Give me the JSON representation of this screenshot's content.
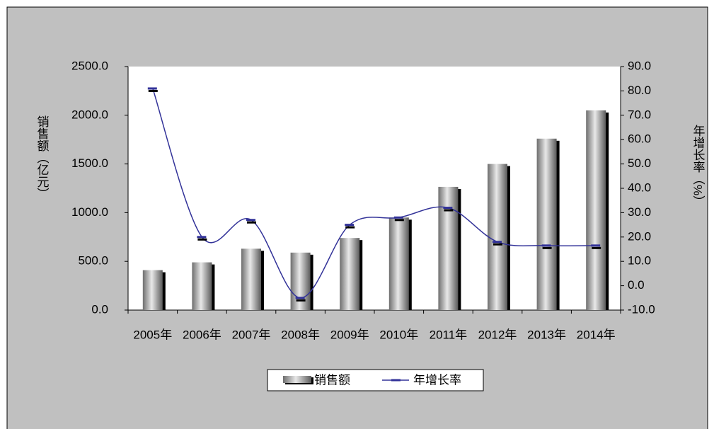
{
  "chart_data": {
    "type": "bar_line",
    "categories": [
      "2005年",
      "2006年",
      "2007年",
      "2008年",
      "2009年",
      "2010年",
      "2011年",
      "2012年",
      "2013年",
      "2014年"
    ],
    "series": [
      {
        "name": "销售额",
        "color": "#808080",
        "values": [
          410,
          490,
          630,
          590,
          740,
          950,
          1265,
          1500,
          1760,
          2050
        ]
      },
      {
        "name": "年增长率",
        "color": "#333399",
        "axis": "y2",
        "values": [
          81,
          20,
          27,
          -5,
          25,
          28,
          32,
          18,
          16.5,
          16.5
        ]
      }
    ],
    "ylabel": "销售额（亿元）",
    "y2label": "年增长率（%）",
    "ylim": [
      0,
      2500
    ],
    "yticks": [
      {
        "value": 0,
        "label": "0.0"
      },
      {
        "value": 500,
        "label": "500.0"
      },
      {
        "value": 1000,
        "label": "1000.0"
      },
      {
        "value": 1500,
        "label": "1500.0"
      },
      {
        "value": 2000,
        "label": "2000.0"
      },
      {
        "value": 2500,
        "label": "2500.0"
      }
    ],
    "y2lim": [
      -10,
      90
    ],
    "y2ticks": [
      {
        "value": -10,
        "label": "-10.0"
      },
      {
        "value": 0,
        "label": "0.0"
      },
      {
        "value": 10,
        "label": "10.0"
      },
      {
        "value": 20,
        "label": "20.0"
      },
      {
        "value": 30,
        "label": "30.0"
      },
      {
        "value": 40,
        "label": "40.0"
      },
      {
        "value": 50,
        "label": "50.0"
      },
      {
        "value": 60,
        "label": "60.0"
      },
      {
        "value": 70,
        "label": "70.0"
      },
      {
        "value": 80,
        "label": "80.0"
      },
      {
        "value": 90,
        "label": "90.0"
      }
    ],
    "legend": "bottom"
  }
}
